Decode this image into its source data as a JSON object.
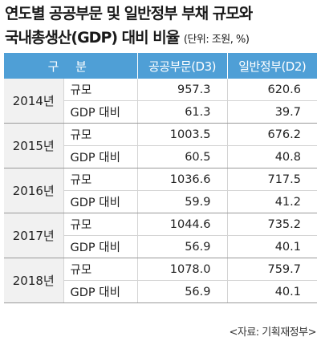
{
  "title": {
    "line1": "연도별 공공부문 및 일반정부 부채 규모와",
    "line2": "국내총생산(GDP) 대비 비율",
    "unit": "(단위: 조원, %)"
  },
  "header": {
    "category": "구 분",
    "public": "공공부문(D3)",
    "general": "일반정부(D2)"
  },
  "rows": [
    {
      "year": "2014년",
      "scale_label": "규모",
      "scale_d3": "957.3",
      "scale_d2": "620.6",
      "ratio_label": "GDP 대비",
      "ratio_d3": "61.3",
      "ratio_d2": "39.7"
    },
    {
      "year": "2015년",
      "scale_label": "규모",
      "scale_d3": "1003.5",
      "scale_d2": "676.2",
      "ratio_label": "GDP 대비",
      "ratio_d3": "60.5",
      "ratio_d2": "40.8"
    },
    {
      "year": "2016년",
      "scale_label": "규모",
      "scale_d3": "1036.6",
      "scale_d2": "717.5",
      "ratio_label": "GDP 대비",
      "ratio_d3": "59.9",
      "ratio_d2": "41.2"
    },
    {
      "year": "2017년",
      "scale_label": "규모",
      "scale_d3": "1044.6",
      "scale_d2": "735.2",
      "ratio_label": "GDP 대비",
      "ratio_d3": "56.9",
      "ratio_d2": "40.1"
    },
    {
      "year": "2018년",
      "scale_label": "규모",
      "scale_d3": "1078.0",
      "scale_d2": "759.7",
      "ratio_label": "GDP 대비",
      "ratio_d3": "56.9",
      "ratio_d2": "40.1"
    }
  ],
  "source": "<자료: 기획재정부>",
  "colors": {
    "header_bg": "#4f9fd6",
    "year_bg": "#f1f1f1"
  }
}
